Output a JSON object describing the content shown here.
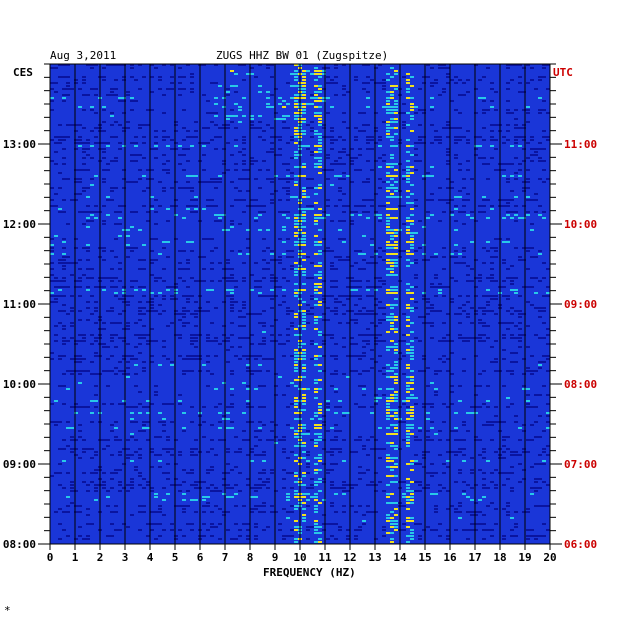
{
  "header": {
    "date": "Aug 3,2011",
    "station": "ZUGS HHZ BW 01 (Zugspitze)"
  },
  "chart_data": {
    "type": "heatmap",
    "xlabel": "FREQUENCY (HZ)",
    "left_axis_label": "CES",
    "right_axis_label": "UTC",
    "xlim": [
      0,
      20
    ],
    "x_ticks": [
      "0",
      "1",
      "2",
      "3",
      "4",
      "5",
      "6",
      "7",
      "8",
      "9",
      "10",
      "11",
      "12",
      "13",
      "14",
      "15",
      "16",
      "17",
      "18",
      "19",
      "20"
    ],
    "left_time_ticks": [
      {
        "label": "08:00",
        "hours": 8
      },
      {
        "label": "09:00",
        "hours": 9
      },
      {
        "label": "10:00",
        "hours": 10
      },
      {
        "label": "11:00",
        "hours": 11
      },
      {
        "label": "12:00",
        "hours": 12
      },
      {
        "label": "13:00",
        "hours": 13
      }
    ],
    "right_time_ticks": [
      {
        "label": "06:00",
        "hours": 6
      },
      {
        "label": "07:00",
        "hours": 7
      },
      {
        "label": "08:00",
        "hours": 8
      },
      {
        "label": "09:00",
        "hours": 9
      },
      {
        "label": "10:00",
        "hours": 10
      },
      {
        "label": "11:00",
        "hours": 11
      }
    ],
    "time_range_local": [
      8,
      14
    ],
    "colors": {
      "background": "#1a36d8",
      "low": "#0a14a0",
      "mid": "#28c8e8",
      "high": "#f0e020",
      "right_axis": "#cc0000",
      "grid": "#000000"
    },
    "persistent_bands_hz": [
      9.9,
      10.7,
      13.6,
      14.3
    ]
  },
  "footnote": "*"
}
